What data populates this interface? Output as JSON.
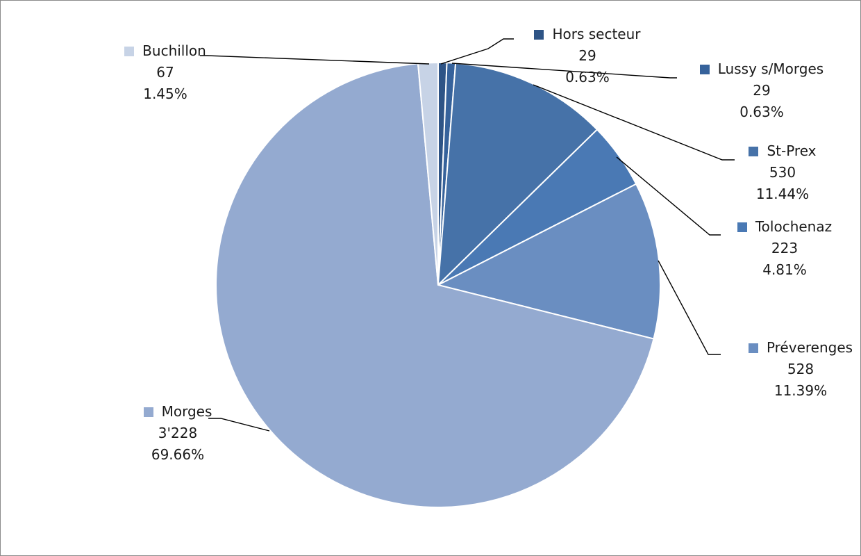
{
  "chart_data": {
    "type": "pie",
    "title": "",
    "start_angle_deg": 0,
    "slices": [
      {
        "name": "Hors secteur",
        "value": 29,
        "value_label": "29",
        "percent": "0.63%",
        "color": "#2e5486"
      },
      {
        "name": "Lussy s/Morges",
        "value": 29,
        "value_label": "29",
        "percent": "0.63%",
        "color": "#36629b"
      },
      {
        "name": "St-Prex",
        "value": 530,
        "value_label": "530",
        "percent": "11.44%",
        "color": "#4672a8"
      },
      {
        "name": "Tolochenaz",
        "value": 223,
        "value_label": "223",
        "percent": "4.81%",
        "color": "#4a79b4"
      },
      {
        "name": "Préverenges",
        "value": 528,
        "value_label": "528",
        "percent": "11.39%",
        "color": "#6a8ec1"
      },
      {
        "name": "Morges",
        "value": 3228,
        "value_label": "3'228",
        "percent": "69.66%",
        "color": "#94aad0"
      },
      {
        "name": "Buchillon",
        "value": 67,
        "value_label": "67",
        "percent": "1.45%",
        "color": "#c7d3e6"
      }
    ]
  }
}
